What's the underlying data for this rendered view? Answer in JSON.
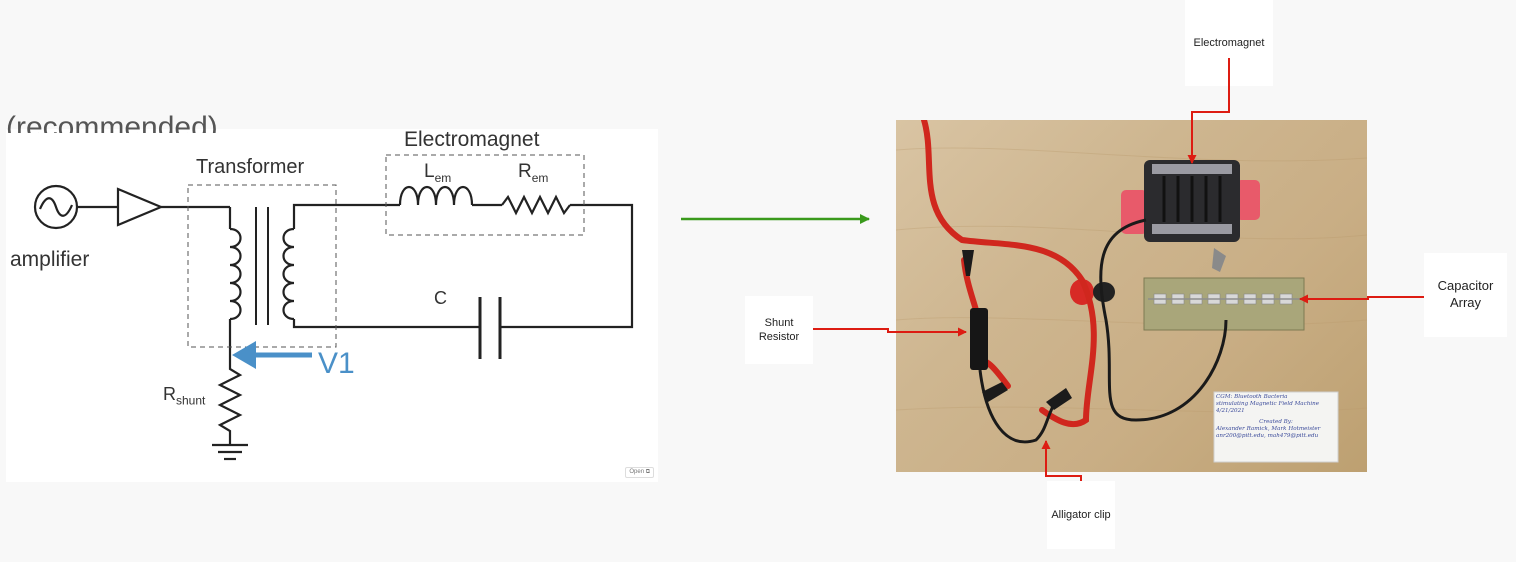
{
  "schematic": {
    "cut_heading": "(recommended)",
    "electromagnet_label": "Electromagnet",
    "transformer_label": "Transformer",
    "amplifier_label": "amplifier",
    "inductor_symbol": "L",
    "inductor_subscript": "em",
    "resistor_symbol": "R",
    "resistor_subscript": "em",
    "capacitor_label": "C",
    "voltage_label": "V1",
    "shunt_symbol": "R",
    "shunt_subscript": "shunt",
    "open_button": "Open ⧉"
  },
  "callouts": {
    "electromagnet": "Electromagnet",
    "shunt_resistor": "Shunt Resistor",
    "capacitor_array": "Capacitor Array",
    "alligator_clip": "Alligator clip"
  },
  "photo_note": {
    "line1": "CGM: Bluetooth Bacteria",
    "line2": "stimulating Magnetic Field Machine",
    "line3": "4/21/2021",
    "line4": "Created By:",
    "line5": "Alexander Ramick, Mark Hotmeister",
    "line6": "anr200@pitt.edu, mah479@pitt.edu"
  },
  "colors": {
    "arrow_green": "#3a9a1c",
    "arrow_red": "#dd1c12",
    "voltage_blue": "#4a90c8"
  }
}
